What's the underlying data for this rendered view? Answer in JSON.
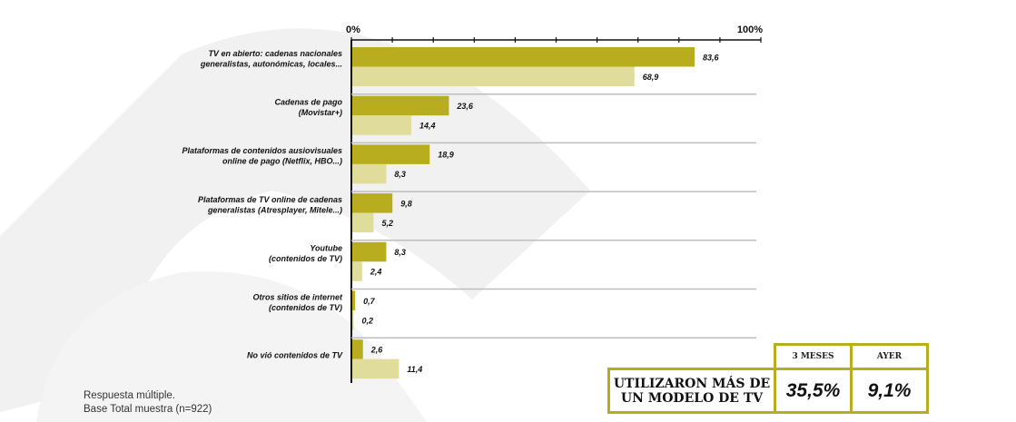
{
  "chart_data": {
    "type": "bar",
    "orientation": "horizontal",
    "xlim": [
      0,
      100
    ],
    "tick_labels": [
      "0%",
      "100%"
    ],
    "series_colors": [
      "#b8ad1e",
      "#e0dc9c"
    ],
    "categories": [
      [
        "TV en abierto: cadenas nacionales",
        "generalistas, autonómicas, locales..."
      ],
      [
        "Cadenas de pago",
        "(Movistar+)"
      ],
      [
        "Plataformas de contenidos ausiovisuales",
        "online de pago (Netflix, HBO...)"
      ],
      [
        "Plataformas de TV online de cadenas",
        "generalistas (Atresplayer, Mitele...)"
      ],
      [
        "Youtube",
        "(contenidos de TV)"
      ],
      [
        "Otros sitios de internet",
        "(contenidos de TV)"
      ],
      [
        "No vió contenidos de TV"
      ]
    ],
    "series": [
      {
        "values": [
          83.6,
          23.6,
          18.9,
          9.8,
          8.3,
          0.7,
          2.6
        ],
        "labels": [
          "83,6",
          "23,6",
          "18,9",
          "9,8",
          "8,3",
          "0,7",
          "2,6"
        ]
      },
      {
        "values": [
          68.9,
          14.4,
          8.3,
          5.2,
          2.4,
          0.2,
          11.4
        ],
        "labels": [
          "68,9",
          "14,4",
          "8,3",
          "5,2",
          "2,4",
          "0,2",
          "11,4"
        ]
      }
    ]
  },
  "notes": {
    "line1": "Respuesta múltiple.",
    "line2": "Base Total muestra (n=922)"
  },
  "summary": {
    "header_3m": "3 MESES",
    "header_ayer": "AYER",
    "label_line1": "UTILIZARON MÁS DE",
    "label_line2": "UN MODELO DE TV",
    "value_3m": "35,5%",
    "value_ayer": "9,1%"
  }
}
